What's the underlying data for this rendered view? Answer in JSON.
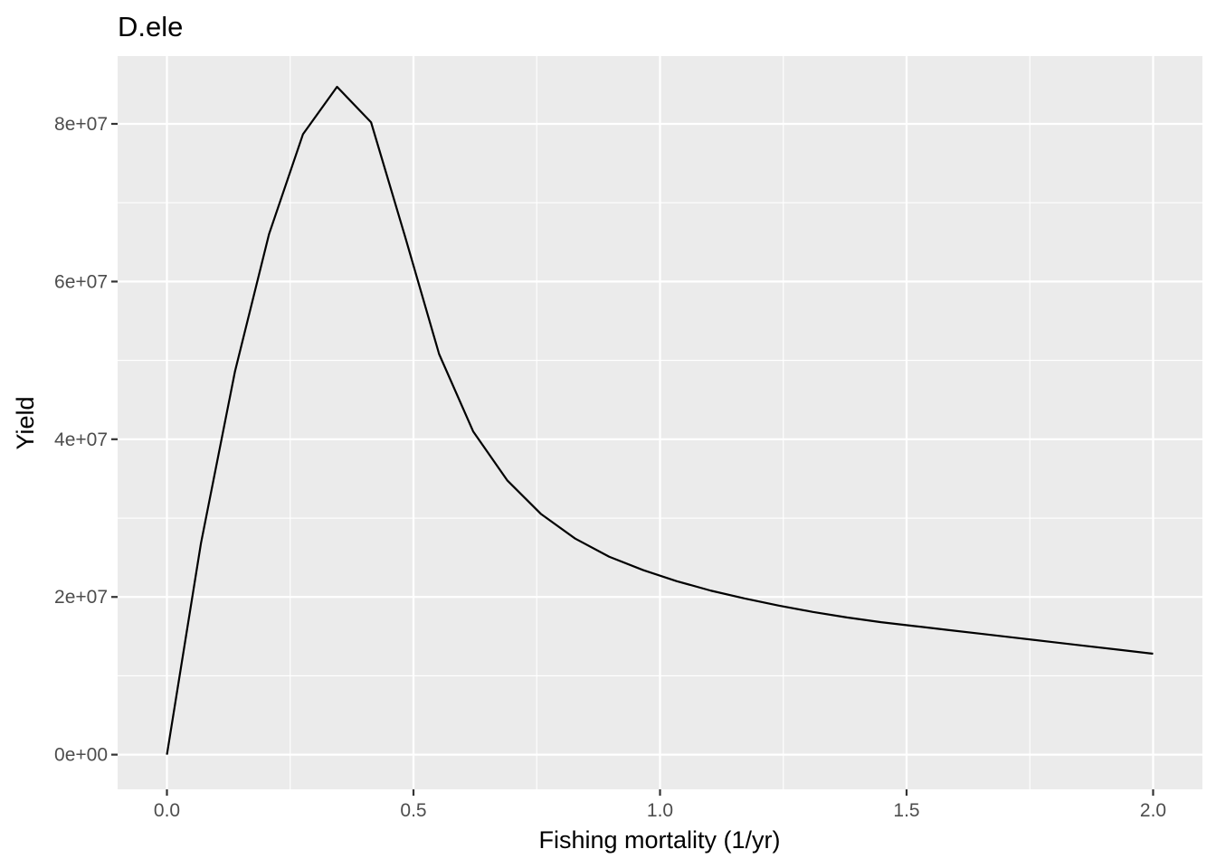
{
  "chart_data": {
    "type": "line",
    "title": "D.ele",
    "xlabel": "Fishing mortality (1/yr)",
    "ylabel": "Yield",
    "xlim": [
      -0.1,
      2.1
    ],
    "ylim": [
      -4400000,
      88600000
    ],
    "x_ticks": [
      0.0,
      0.5,
      1.0,
      1.5,
      2.0
    ],
    "x_tick_labels": [
      "0.0",
      "0.5",
      "1.0",
      "1.5",
      "2.0"
    ],
    "y_ticks": [
      0,
      20000000,
      40000000,
      60000000,
      80000000
    ],
    "y_tick_labels": [
      "0e+00",
      "2e+07",
      "4e+07",
      "6e+07",
      "8e+07"
    ],
    "grid": true,
    "legend": "none",
    "colors": {
      "panel_background": "#ebebeb",
      "grid_line": "#ffffff",
      "series_line": "#000000",
      "tick_label": "#4d4d4d",
      "tick_mark": "#333333"
    },
    "series": [
      {
        "x": [
          0.0,
          0.069,
          0.138,
          0.207,
          0.276,
          0.345,
          0.414,
          0.483,
          0.552,
          0.621,
          0.69,
          0.759,
          0.828,
          0.897,
          0.966,
          1.034,
          1.103,
          1.172,
          1.241,
          1.31,
          1.379,
          1.448,
          1.517,
          1.586,
          1.655,
          1.724,
          1.793,
          1.862,
          1.931,
          2.0
        ],
        "values": [
          0,
          26800000,
          48600000,
          66000000,
          78700000,
          84700000,
          80200000,
          65700000,
          50800000,
          41000000,
          34800000,
          30500000,
          27400000,
          25100000,
          23400000,
          22000000,
          20800000,
          19800000,
          18900000,
          18100000,
          17400000,
          16800000,
          16300000,
          15800000,
          15300000,
          14800000,
          14300000,
          13800000,
          13300000,
          12800000
        ]
      }
    ]
  }
}
